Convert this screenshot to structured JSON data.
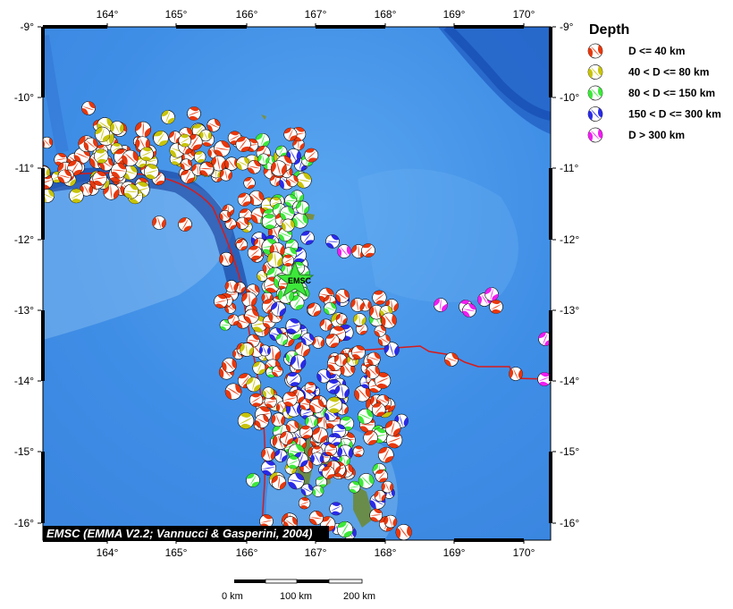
{
  "map": {
    "lon_ticks": [
      "164°",
      "165°",
      "166°",
      "167°",
      "168°",
      "169°",
      "170°"
    ],
    "lat_ticks": [
      "-9°",
      "-10°",
      "-11°",
      "-12°",
      "-13°",
      "-14°",
      "-15°",
      "-16°"
    ],
    "emsc_marker_label": "EMSC",
    "credit": "EMSC (EMMA V2.2; Vannucci & Gasperini, 2004)",
    "scale_labels": [
      "0 km",
      "100 km",
      "200 km"
    ]
  },
  "legend": {
    "title": "Depth",
    "items": [
      {
        "label": "D <= 40 km",
        "color": "#e8380d"
      },
      {
        "label": "40 < D <= 80 km",
        "color": "#c8c40a"
      },
      {
        "label": "80 < D <= 150 km",
        "color": "#3de83a"
      },
      {
        "label": "150 < D <= 300 km",
        "color": "#2a2ae8"
      },
      {
        "label": "D > 300 km",
        "color": "#f01df0"
      }
    ]
  },
  "colors": {
    "ocean": "#3f8ee6",
    "trench": "#0d3fa8",
    "plate_boundary": "#d81a1a"
  }
}
